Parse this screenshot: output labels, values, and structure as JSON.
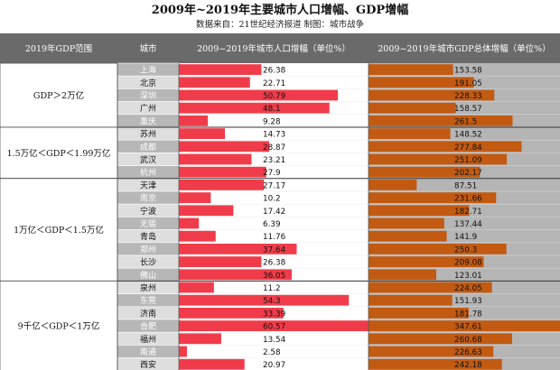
{
  "title": "2009年~2019年主要城市人口增幅、GDP增幅",
  "subtitle": "数据来自：21世纪经济报道  制图：城市战争",
  "headers": {
    "range": "2019年GDP范围",
    "city": "城市",
    "pop": "2009~2019年城市人口增幅（单位%）",
    "gdp": "2009~2019年城市GDP总体增幅（单位%）"
  },
  "colors": {
    "header_bg": "#6a6a6a",
    "pop_bar": "#f03c4a",
    "gdp_bar": "#c25a12",
    "city_white": "#ffffff",
    "city_gray": "#dedede",
    "city_text_white": "#ffffff",
    "city_text_dark": "#111111"
  },
  "chart_data": {
    "type": "table",
    "groups": [
      {
        "label": "GDP＞2万亿",
        "cities": [
          "上海",
          "北京",
          "深圳",
          "广州",
          "重庆"
        ]
      },
      {
        "label": "1.5万亿＜GDP＜1.99万亿",
        "cities": [
          "苏州",
          "成都",
          "武汉",
          "杭州"
        ]
      },
      {
        "label": "1万亿＜GDP＜1.5万亿",
        "cities": [
          "天津",
          "南京",
          "宁波",
          "无锡",
          "青岛",
          "郑州",
          "长沙",
          "佛山"
        ]
      },
      {
        "label": "9千亿＜GDP＜1万亿",
        "cities": [
          "泉州",
          "东莞",
          "济南",
          "合肥",
          "福州",
          "南通",
          "西安"
        ]
      }
    ],
    "rows": [
      {
        "city": "上海",
        "pop": "26.38",
        "gdp": "153.58"
      },
      {
        "city": "北京",
        "pop": "22.71",
        "gdp": "191.05"
      },
      {
        "city": "深圳",
        "pop": "50.79",
        "gdp": "228.33"
      },
      {
        "city": "广州",
        "pop": "48.1",
        "gdp": "158.57"
      },
      {
        "city": "重庆",
        "pop": "9.28",
        "gdp": "261.5"
      },
      {
        "city": "苏州",
        "pop": "14.73",
        "gdp": "148.52"
      },
      {
        "city": "成都",
        "pop": "28.87",
        "gdp": "277.84"
      },
      {
        "city": "武汉",
        "pop": "23.21",
        "gdp": "251.09"
      },
      {
        "city": "杭州",
        "pop": "27.9",
        "gdp": "202.17"
      },
      {
        "city": "天津",
        "pop": "27.17",
        "gdp": "87.51"
      },
      {
        "city": "南京",
        "pop": "10.2",
        "gdp": "231.66"
      },
      {
        "city": "宁波",
        "pop": "17.42",
        "gdp": "182.71"
      },
      {
        "city": "无锡",
        "pop": "6.39",
        "gdp": "137.44"
      },
      {
        "city": "青岛",
        "pop": "11.76",
        "gdp": "141.9"
      },
      {
        "city": "郑州",
        "pop": "37.64",
        "gdp": "250.3"
      },
      {
        "city": "长沙",
        "pop": "26.38",
        "gdp": "209.08"
      },
      {
        "city": "佛山",
        "pop": "36.05",
        "gdp": "123.01"
      },
      {
        "city": "泉州",
        "pop": "11.2",
        "gdp": "224.05"
      },
      {
        "city": "东莞",
        "pop": "54.3",
        "gdp": "151.93"
      },
      {
        "city": "济南",
        "pop": "33.39",
        "gdp": "181.78"
      },
      {
        "city": "合肥",
        "pop": "60.57",
        "gdp": "347.61"
      },
      {
        "city": "福州",
        "pop": "13.54",
        "gdp": "260.68"
      },
      {
        "city": "南通",
        "pop": "2.58",
        "gdp": "226.63"
      },
      {
        "city": "西安",
        "pop": "20.97",
        "gdp": "242.18"
      }
    ],
    "pop_max": 60.57,
    "gdp_max": 347.61
  }
}
